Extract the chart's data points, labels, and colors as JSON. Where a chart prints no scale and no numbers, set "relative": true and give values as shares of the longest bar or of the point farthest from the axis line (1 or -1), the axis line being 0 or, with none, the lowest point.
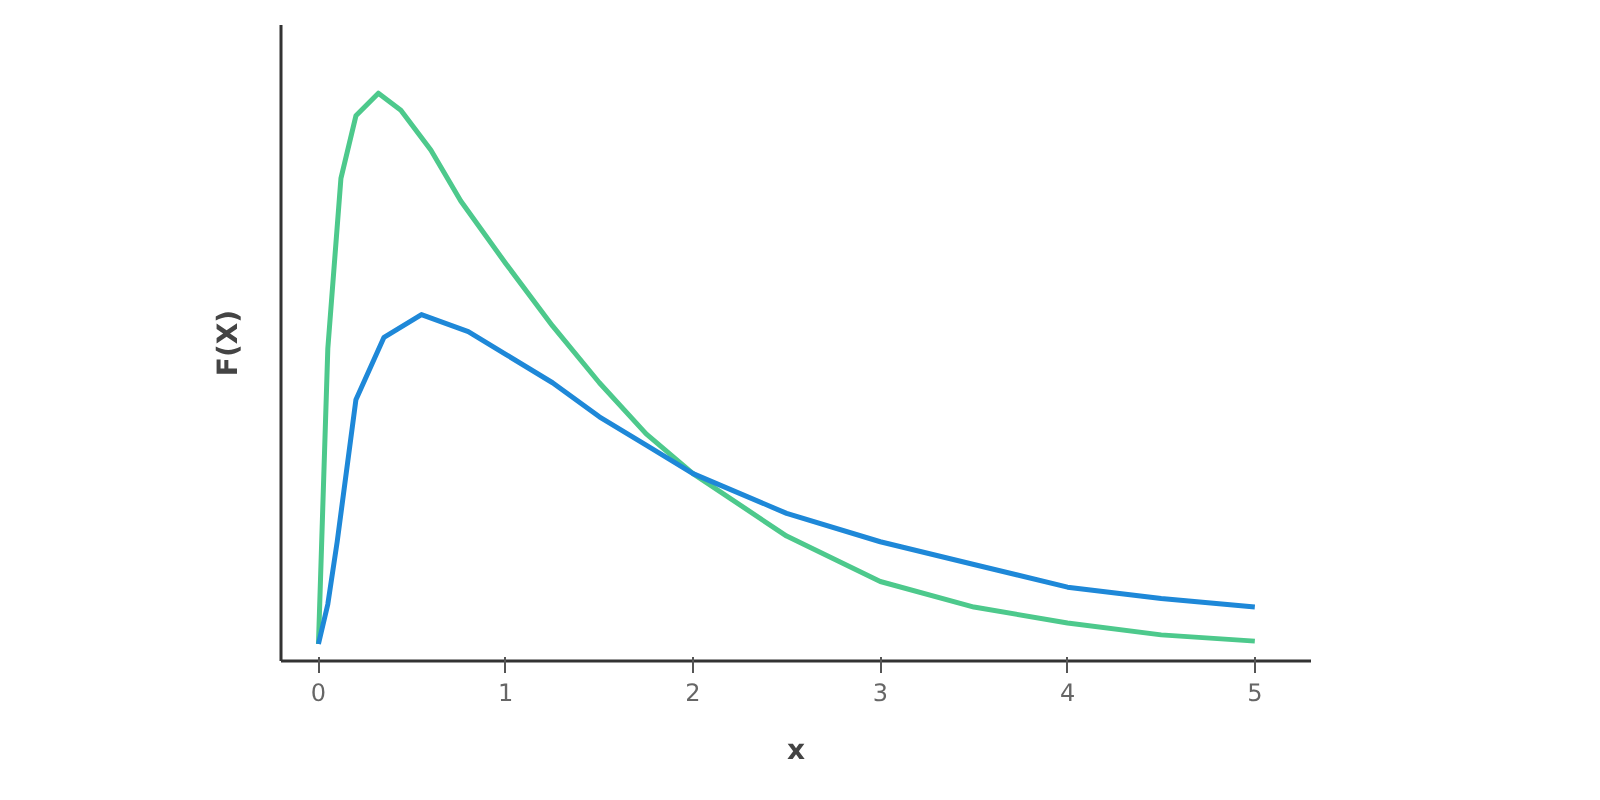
{
  "chart_data": {
    "type": "line",
    "relative": true,
    "xlabel": "x",
    "ylabel": "F(X)",
    "xlim": [
      -0.2,
      5.3
    ],
    "xticks": [
      0,
      1,
      2,
      3,
      4,
      5
    ],
    "series": [
      {
        "color": "#4dc98c",
        "x": [
          0,
          0.05,
          0.12,
          0.2,
          0.32,
          0.44,
          0.6,
          0.76,
          1,
          1.25,
          1.5,
          1.75,
          2,
          2.5,
          3,
          3.5,
          4,
          4.5,
          5
        ],
        "values": [
          0.03,
          0.55,
          0.85,
          0.96,
          1.0,
          0.97,
          0.9,
          0.81,
          0.7,
          0.59,
          0.49,
          0.4,
          0.33,
          0.22,
          0.14,
          0.095,
          0.067,
          0.046,
          0.035
        ]
      },
      {
        "color": "#1e88d8",
        "x": [
          0,
          0.05,
          0.1,
          0.2,
          0.35,
          0.55,
          0.8,
          1,
          1.25,
          1.5,
          1.75,
          2,
          2.5,
          3,
          3.5,
          4,
          4.5,
          5
        ],
        "values": [
          0.03,
          0.1,
          0.21,
          0.46,
          0.57,
          0.61,
          0.58,
          0.54,
          0.49,
          0.43,
          0.38,
          0.33,
          0.26,
          0.21,
          0.17,
          0.13,
          0.11,
          0.095
        ]
      }
    ]
  }
}
